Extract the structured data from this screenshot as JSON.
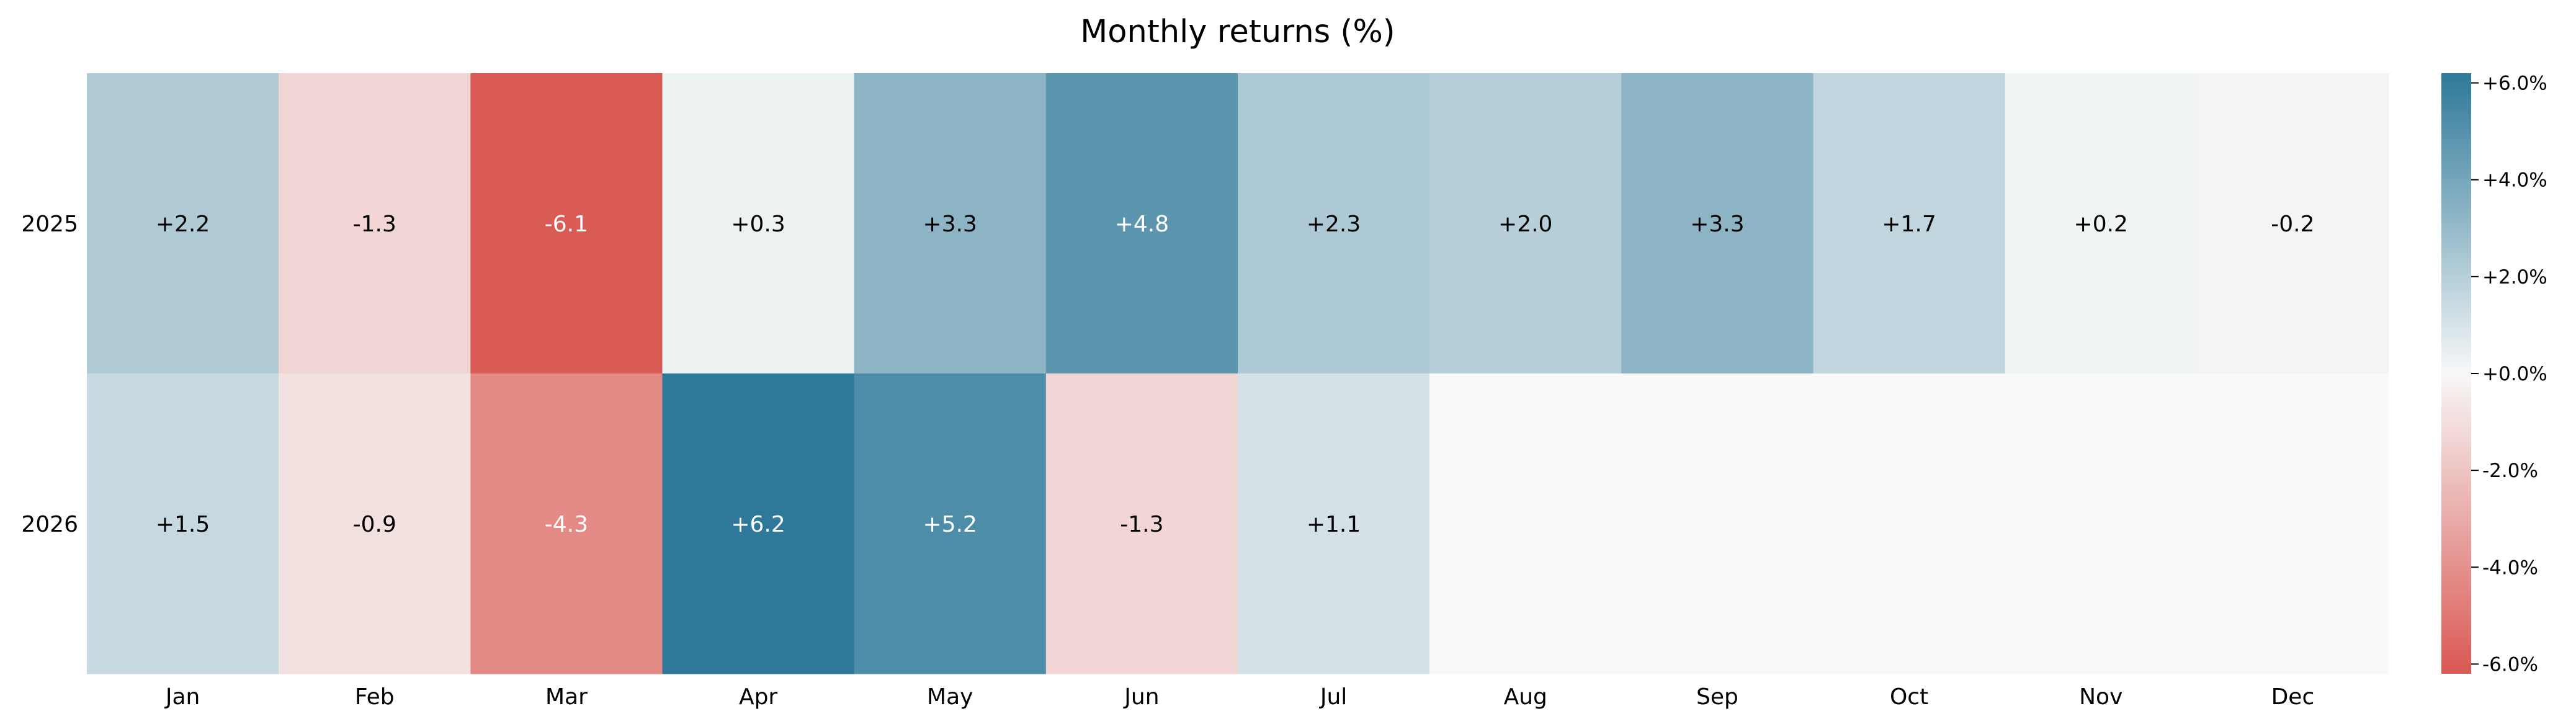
{
  "chart_data": {
    "type": "heatmap",
    "title": "Monthly returns (%)",
    "columns": [
      "Jan",
      "Feb",
      "Mar",
      "Apr",
      "May",
      "Jun",
      "Jul",
      "Aug",
      "Sep",
      "Oct",
      "Nov",
      "Dec"
    ],
    "rows": [
      "2025",
      "2026"
    ],
    "values": [
      [
        2.2,
        -1.3,
        -6.1,
        0.3,
        3.3,
        4.8,
        2.3,
        2.0,
        3.3,
        1.7,
        0.2,
        -0.2
      ],
      [
        1.5,
        -0.9,
        -4.3,
        6.2,
        5.2,
        -1.3,
        1.1,
        null,
        null,
        null,
        null,
        null
      ]
    ],
    "cell_labels": [
      [
        "+2.2",
        "-1.3",
        "-6.1",
        "+0.3",
        "+3.3",
        "+4.8",
        "+2.3",
        "+2.0",
        "+3.3",
        "+1.7",
        "+0.2",
        "-0.2"
      ],
      [
        "+1.5",
        "-0.9",
        "-4.3",
        "+6.2",
        "+5.2",
        "-1.3",
        "+1.1",
        "",
        "",
        "",
        "",
        ""
      ]
    ],
    "colorbar": {
      "range": [
        -6.2,
        6.2
      ],
      "ticks": [
        6,
        4,
        2,
        0,
        -2,
        -4,
        -6
      ],
      "tick_labels": [
        "+6.0%",
        "+4.0%",
        "+2.0%",
        "+0.0%",
        "-2.0%",
        "-4.0%",
        "-6.0%"
      ],
      "colors": {
        "negative": "#DA5853",
        "neutral": "#F7F8F8",
        "positive": "#2E7999",
        "missing": "#F9F9F9"
      }
    },
    "text_colors": {
      "dark": "#000000",
      "light": "#ffffff"
    }
  }
}
